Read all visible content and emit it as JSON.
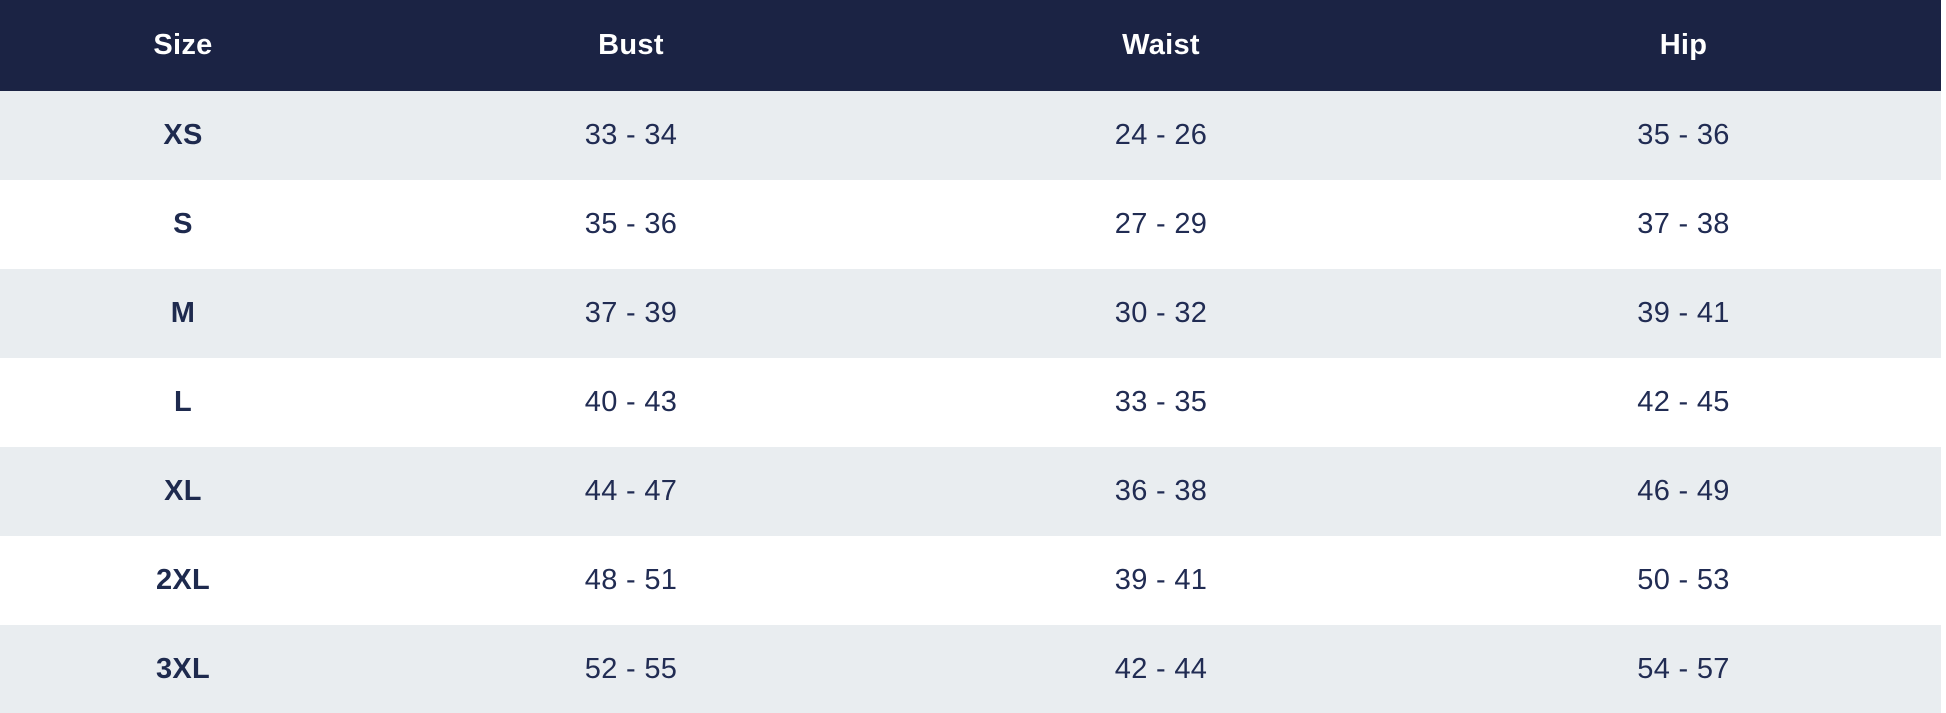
{
  "size_chart": {
    "columns": [
      "Size",
      "Bust",
      "Waist",
      "Hip"
    ],
    "rows": [
      {
        "size": "XS",
        "bust": "33 - 34",
        "waist": "24 - 26",
        "hip": "35 - 36"
      },
      {
        "size": "S",
        "bust": "35 - 36",
        "waist": "27 - 29",
        "hip": "37 - 38"
      },
      {
        "size": "M",
        "bust": "37 - 39",
        "waist": "30 - 32",
        "hip": "39 - 41"
      },
      {
        "size": "L",
        "bust": "40 - 43",
        "waist": "33 - 35",
        "hip": "42 - 45"
      },
      {
        "size": "XL",
        "bust": "44 - 47",
        "waist": "36 - 38",
        "hip": "46 - 49"
      },
      {
        "size": "2XL",
        "bust": "48 - 51",
        "waist": "39 - 41",
        "hip": "50 - 53"
      },
      {
        "size": "3XL",
        "bust": "52 - 55",
        "waist": "42 - 44",
        "hip": "54 - 57"
      }
    ],
    "colors": {
      "header_background": "#1b2344",
      "header_text": "#ffffff",
      "stripe_row_background": "#e9edf0",
      "row_background": "#ffffff",
      "cell_text": "#212c53",
      "size_label_text": "#1e2a4e"
    }
  }
}
